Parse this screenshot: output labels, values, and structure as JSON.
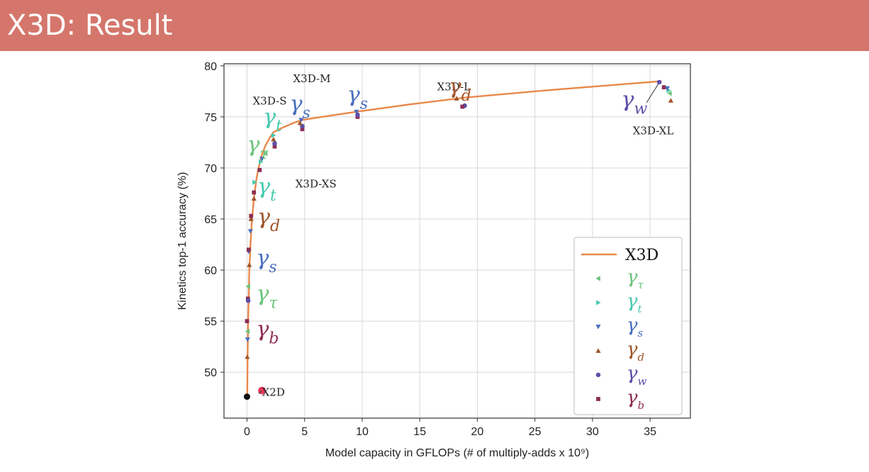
{
  "header": {
    "title": "X3D: Result"
  },
  "colors": {
    "header_bg": "#d4766b",
    "curve": "#e8894a",
    "gamma_tau": "#6cc37a",
    "gamma_t": "#46c9b0",
    "gamma_s": "#4a6fbf",
    "gamma_d": "#a0562b",
    "gamma_w": "#5a4fa8",
    "gamma_b": "#8c2f55",
    "base_point": "#111111",
    "x2d_point": "#e8385a"
  },
  "chart_data": {
    "type": "line",
    "xlabel": "Model capacity in GFLOPs (# of multiply-adds x 10⁹)",
    "ylabel": "Kinetics top-1 accuracy (%)",
    "xlim": [
      -2,
      38.5
    ],
    "ylim": [
      45.5,
      80.2
    ],
    "xticks": [
      0,
      5,
      10,
      15,
      20,
      25,
      30,
      35
    ],
    "yticks": [
      50,
      55,
      60,
      65,
      70,
      75,
      80
    ],
    "grid": true,
    "legend_position": "bottom-right",
    "legend": [
      {
        "key": "x3d",
        "label": "X3D",
        "marker": "line"
      },
      {
        "key": "tau",
        "symbol": "γ",
        "sub": "τ",
        "marker": "triangle-left"
      },
      {
        "key": "t",
        "symbol": "γ",
        "sub": "t",
        "marker": "triangle-right"
      },
      {
        "key": "s",
        "symbol": "γ",
        "sub": "s",
        "marker": "triangle-down"
      },
      {
        "key": "d",
        "symbol": "γ",
        "sub": "d",
        "marker": "triangle-up"
      },
      {
        "key": "w",
        "symbol": "γ",
        "sub": "w",
        "marker": "circle"
      },
      {
        "key": "b",
        "symbol": "γ",
        "sub": "b",
        "marker": "square"
      }
    ],
    "curve": {
      "name": "X3D",
      "x": [
        0.02,
        0.05,
        0.1,
        0.15,
        0.2,
        0.3,
        0.4,
        0.6,
        0.8,
        1.0,
        1.3,
        1.6,
        2.0,
        2.3,
        3.0,
        4.0,
        4.8,
        6.5,
        9.5,
        14.0,
        19.0,
        26.0,
        36.0
      ],
      "y": [
        47.6,
        51.5,
        55.0,
        57.5,
        60.0,
        62.5,
        64.5,
        67.0,
        68.8,
        70.0,
        71.3,
        72.2,
        73.0,
        73.5,
        73.9,
        74.4,
        74.7,
        75.0,
        75.5,
        76.2,
        76.9,
        77.6,
        78.5
      ]
    },
    "points": [
      {
        "series": "base",
        "x": 0.0,
        "y": 47.6
      },
      {
        "series": "x2d",
        "x": 1.3,
        "y": 48.2
      },
      {
        "series": "b",
        "x": 0.0,
        "y": 55.0
      },
      {
        "series": "tau",
        "x": 0.05,
        "y": 54.0
      },
      {
        "series": "s",
        "x": 0.05,
        "y": 53.2
      },
      {
        "series": "d",
        "x": 0.02,
        "y": 51.5
      },
      {
        "series": "tau",
        "x": 0.1,
        "y": 58.4
      },
      {
        "series": "b",
        "x": 0.08,
        "y": 57.2
      },
      {
        "series": "w",
        "x": 0.1,
        "y": 57.0
      },
      {
        "series": "s",
        "x": 0.15,
        "y": 61.8
      },
      {
        "series": "b",
        "x": 0.15,
        "y": 62.0
      },
      {
        "series": "d",
        "x": 0.2,
        "y": 60.5
      },
      {
        "series": "d",
        "x": 0.35,
        "y": 65.0
      },
      {
        "series": "b",
        "x": 0.35,
        "y": 65.3
      },
      {
        "series": "s",
        "x": 0.3,
        "y": 63.8
      },
      {
        "series": "t",
        "x": 0.65,
        "y": 68.6
      },
      {
        "series": "d",
        "x": 0.6,
        "y": 67.0
      },
      {
        "series": "b",
        "x": 0.6,
        "y": 67.6
      },
      {
        "series": "b",
        "x": 1.1,
        "y": 69.8
      },
      {
        "series": "t",
        "x": 1.2,
        "y": 70.6
      },
      {
        "series": "s",
        "x": 1.3,
        "y": 70.9
      },
      {
        "series": "tau",
        "x": 1.6,
        "y": 71.4
      },
      {
        "series": "t",
        "x": 2.3,
        "y": 73.2
      },
      {
        "series": "b",
        "x": 2.4,
        "y": 72.1
      },
      {
        "series": "w",
        "x": 2.4,
        "y": 72.4
      },
      {
        "series": "d",
        "x": 2.3,
        "y": 72.8
      },
      {
        "series": "s",
        "x": 4.7,
        "y": 74.7
      },
      {
        "series": "b",
        "x": 4.8,
        "y": 73.8
      },
      {
        "series": "w",
        "x": 4.8,
        "y": 74.1
      },
      {
        "series": "d",
        "x": 4.6,
        "y": 74.4
      },
      {
        "series": "s",
        "x": 9.5,
        "y": 75.5
      },
      {
        "series": "b",
        "x": 9.6,
        "y": 75.0
      },
      {
        "series": "w",
        "x": 9.6,
        "y": 75.2
      },
      {
        "series": "d",
        "x": 18.2,
        "y": 76.8
      },
      {
        "series": "w",
        "x": 18.9,
        "y": 76.1
      },
      {
        "series": "b",
        "x": 18.7,
        "y": 76.0
      },
      {
        "series": "w",
        "x": 35.8,
        "y": 78.4
      },
      {
        "series": "b",
        "x": 36.2,
        "y": 77.9
      },
      {
        "series": "t",
        "x": 36.6,
        "y": 77.6
      },
      {
        "series": "tau",
        "x": 36.7,
        "y": 77.3
      },
      {
        "series": "d",
        "x": 36.8,
        "y": 76.6
      },
      {
        "series": "s",
        "x": 36.5,
        "y": 77.8
      }
    ],
    "model_labels": [
      {
        "text": "X3D-S",
        "x": 0.5,
        "y": 76.2
      },
      {
        "text": "X3D-M",
        "x": 4.0,
        "y": 78.4
      },
      {
        "text": "X3D-XS",
        "x": 4.2,
        "y": 68.1
      },
      {
        "text": "X3D-L",
        "x": 16.5,
        "y": 77.6
      },
      {
        "text": "X3D-XL",
        "x": 33.5,
        "y": 73.3
      },
      {
        "text": "X2D",
        "x": 1.3,
        "y": 47.7
      }
    ],
    "gamma_annotations": [
      {
        "series": "t",
        "sub": "t",
        "x": 1.4,
        "y": 74.3
      },
      {
        "series": "tau",
        "sub": "τ",
        "x": 0.0,
        "y": 71.6
      },
      {
        "series": "s",
        "sub": "s",
        "x": 3.7,
        "y": 75.6
      },
      {
        "series": "s",
        "sub": "s",
        "x": 8.7,
        "y": 76.5
      },
      {
        "series": "d",
        "sub": "d",
        "x": 17.5,
        "y": 77.3
      },
      {
        "series": "w",
        "sub": "w",
        "x": 32.5,
        "y": 76.0
      },
      {
        "series": "t",
        "sub": "t",
        "x": 0.9,
        "y": 67.5
      },
      {
        "series": "d",
        "sub": "d",
        "x": 0.9,
        "y": 64.5
      },
      {
        "series": "s",
        "sub": "s",
        "x": 0.8,
        "y": 60.5
      },
      {
        "series": "tau",
        "sub": "τ",
        "x": 0.8,
        "y": 57.0
      },
      {
        "series": "b",
        "sub": "b",
        "x": 0.8,
        "y": 53.5
      }
    ]
  }
}
